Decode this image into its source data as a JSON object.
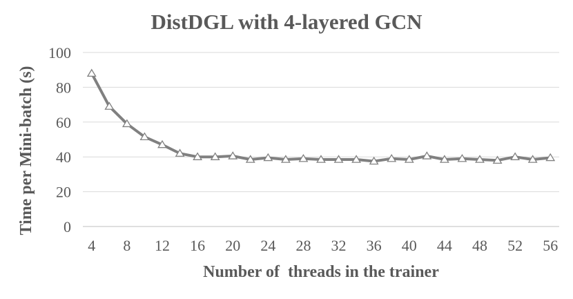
{
  "chart_data": {
    "type": "line",
    "title": "DistDGL with 4-layered GCN",
    "xlabel": "Number of  threads in the trainer",
    "ylabel": "Time per Mini-batch (s)",
    "ylim": [
      0,
      100
    ],
    "yticks": [
      0,
      20,
      40,
      60,
      80,
      100
    ],
    "xticks": [
      4,
      8,
      12,
      16,
      20,
      24,
      28,
      32,
      36,
      40,
      44,
      48,
      52,
      56
    ],
    "grid": true,
    "legend": "none",
    "marker": "open-triangle",
    "color": "#808080",
    "x": [
      4,
      6,
      8,
      10,
      12,
      14,
      16,
      18,
      20,
      22,
      24,
      26,
      28,
      30,
      32,
      34,
      36,
      38,
      40,
      42,
      44,
      46,
      48,
      50,
      52,
      54,
      56
    ],
    "series": [
      {
        "values": [
          88,
          69,
          59,
          51.5,
          47,
          42,
          40,
          40,
          40.5,
          38.5,
          39.5,
          38.5,
          39,
          38.5,
          38.5,
          38.5,
          37.5,
          39,
          38.5,
          40.5,
          38.5,
          39,
          38.5,
          38,
          40,
          38.5,
          39.5
        ]
      }
    ]
  }
}
